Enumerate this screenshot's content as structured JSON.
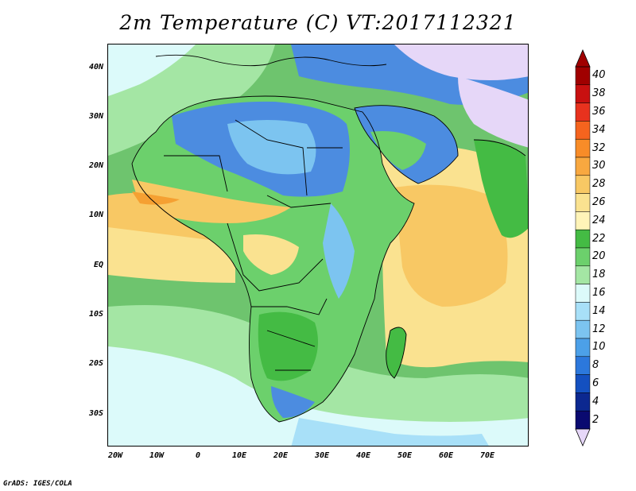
{
  "title": "2m Temperature (C) VT:2017112321",
  "credit": "GrADS: IGES/COLA",
  "lat_labels": [
    "40N",
    "30N",
    "20N",
    "10N",
    "EQ",
    "10S",
    "20S",
    "30S"
  ],
  "lon_labels": [
    "20W",
    "10W",
    "0",
    "10E",
    "20E",
    "30E",
    "40E",
    "50E",
    "60E",
    "70E"
  ],
  "colorbar": {
    "labels": [
      "40",
      "38",
      "36",
      "34",
      "32",
      "30",
      "28",
      "26",
      "24",
      "22",
      "20",
      "18",
      "16",
      "14",
      "12",
      "10",
      "8",
      "6",
      "4",
      "2"
    ],
    "colors": [
      "#a00000",
      "#c81010",
      "#e8321e",
      "#f5641e",
      "#f88c28",
      "#f8a840",
      "#f8c864",
      "#fae290",
      "#fff4b8",
      "#44bb44",
      "#6cd06c",
      "#a4e6a4",
      "#dcfafa",
      "#a8e0f8",
      "#7cc4f0",
      "#4ca0e8",
      "#2c78dc",
      "#1450c0",
      "#0c2890",
      "#0a0a70"
    ],
    "top_arrow_color": "#a00000",
    "bottom_arrow_color": "#e6d7f8"
  },
  "palette": {
    "land_cool": "#4c8ce0",
    "land_mild": "#6cd06c",
    "land_warm": "#f8c864",
    "land_hot": "#f5a032",
    "sea_warm": "#fae290",
    "sea_tropical": "#f8c864",
    "sea_cool": "#a4e6a4",
    "sea_cold": "#dcfafa",
    "very_cold": "#e6d7f8"
  }
}
